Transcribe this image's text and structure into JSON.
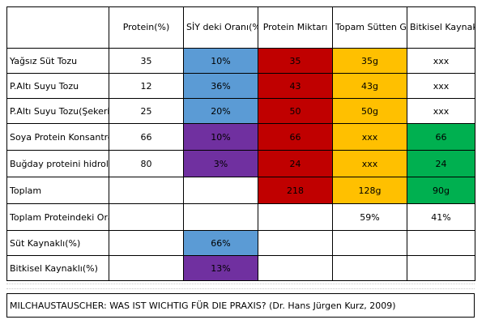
{
  "headers": [
    "",
    "Protein(%)",
    "SİY deki Oranı(%)",
    "Protein Miktarı",
    "Topam Sütten Gelen(g/kg)",
    "Bitkisel Kaynaklı Protein"
  ],
  "rows": [
    {
      "label": "Yağsız Süt Tozu",
      "protein": "35",
      "siy": "10%",
      "miktar": "35",
      "sut": "35g",
      "bitkisel": "xxx"
    },
    {
      "label": "P.Altı Suyu Tozu",
      "protein": "12",
      "siy": "36%",
      "miktar": "43",
      "sut": "43g",
      "bitkisel": "xxx"
    },
    {
      "label": "P.Altı Suyu Tozu(Şekeri Alınmış)",
      "protein": "25",
      "siy": "20%",
      "miktar": "50",
      "sut": "50g",
      "bitkisel": "xxx"
    },
    {
      "label": "Soya Protein Konsantresi",
      "protein": "66",
      "siy": "10%",
      "miktar": "66",
      "sut": "xxx",
      "bitkisel": "66"
    },
    {
      "label": "Buğday proteini hidrolizatı",
      "protein": "80",
      "siy": "3%",
      "miktar": "24",
      "sut": "xxx",
      "bitkisel": "24"
    }
  ],
  "toplam": {
    "label": "Toplam",
    "miktar": "218",
    "sut": "128g",
    "bitkisel": "90g"
  },
  "toplam_oran": {
    "label": "Toplam Proteindeki Oranı(%)",
    "sut": "59%",
    "bitkisel": "41%"
  },
  "sut_kaynakli": {
    "label": "Süt Kaynaklı(%)",
    "value": "66%"
  },
  "bitkisel_kaynakli": {
    "label": "Bitkisel Kaynaklı(%)",
    "value": "13%"
  },
  "footer": "MILCHAUSTAUSCHER: WAS IST WICHTIG FÜR DIE PRAXIS? (Dr. Hans Jürgen Kurz, 2009)",
  "colors": {
    "blue": "#5b9bd5",
    "red": "#c00000",
    "orange": "#ffc000",
    "purple": "#7030a0",
    "green": "#00b050"
  }
}
